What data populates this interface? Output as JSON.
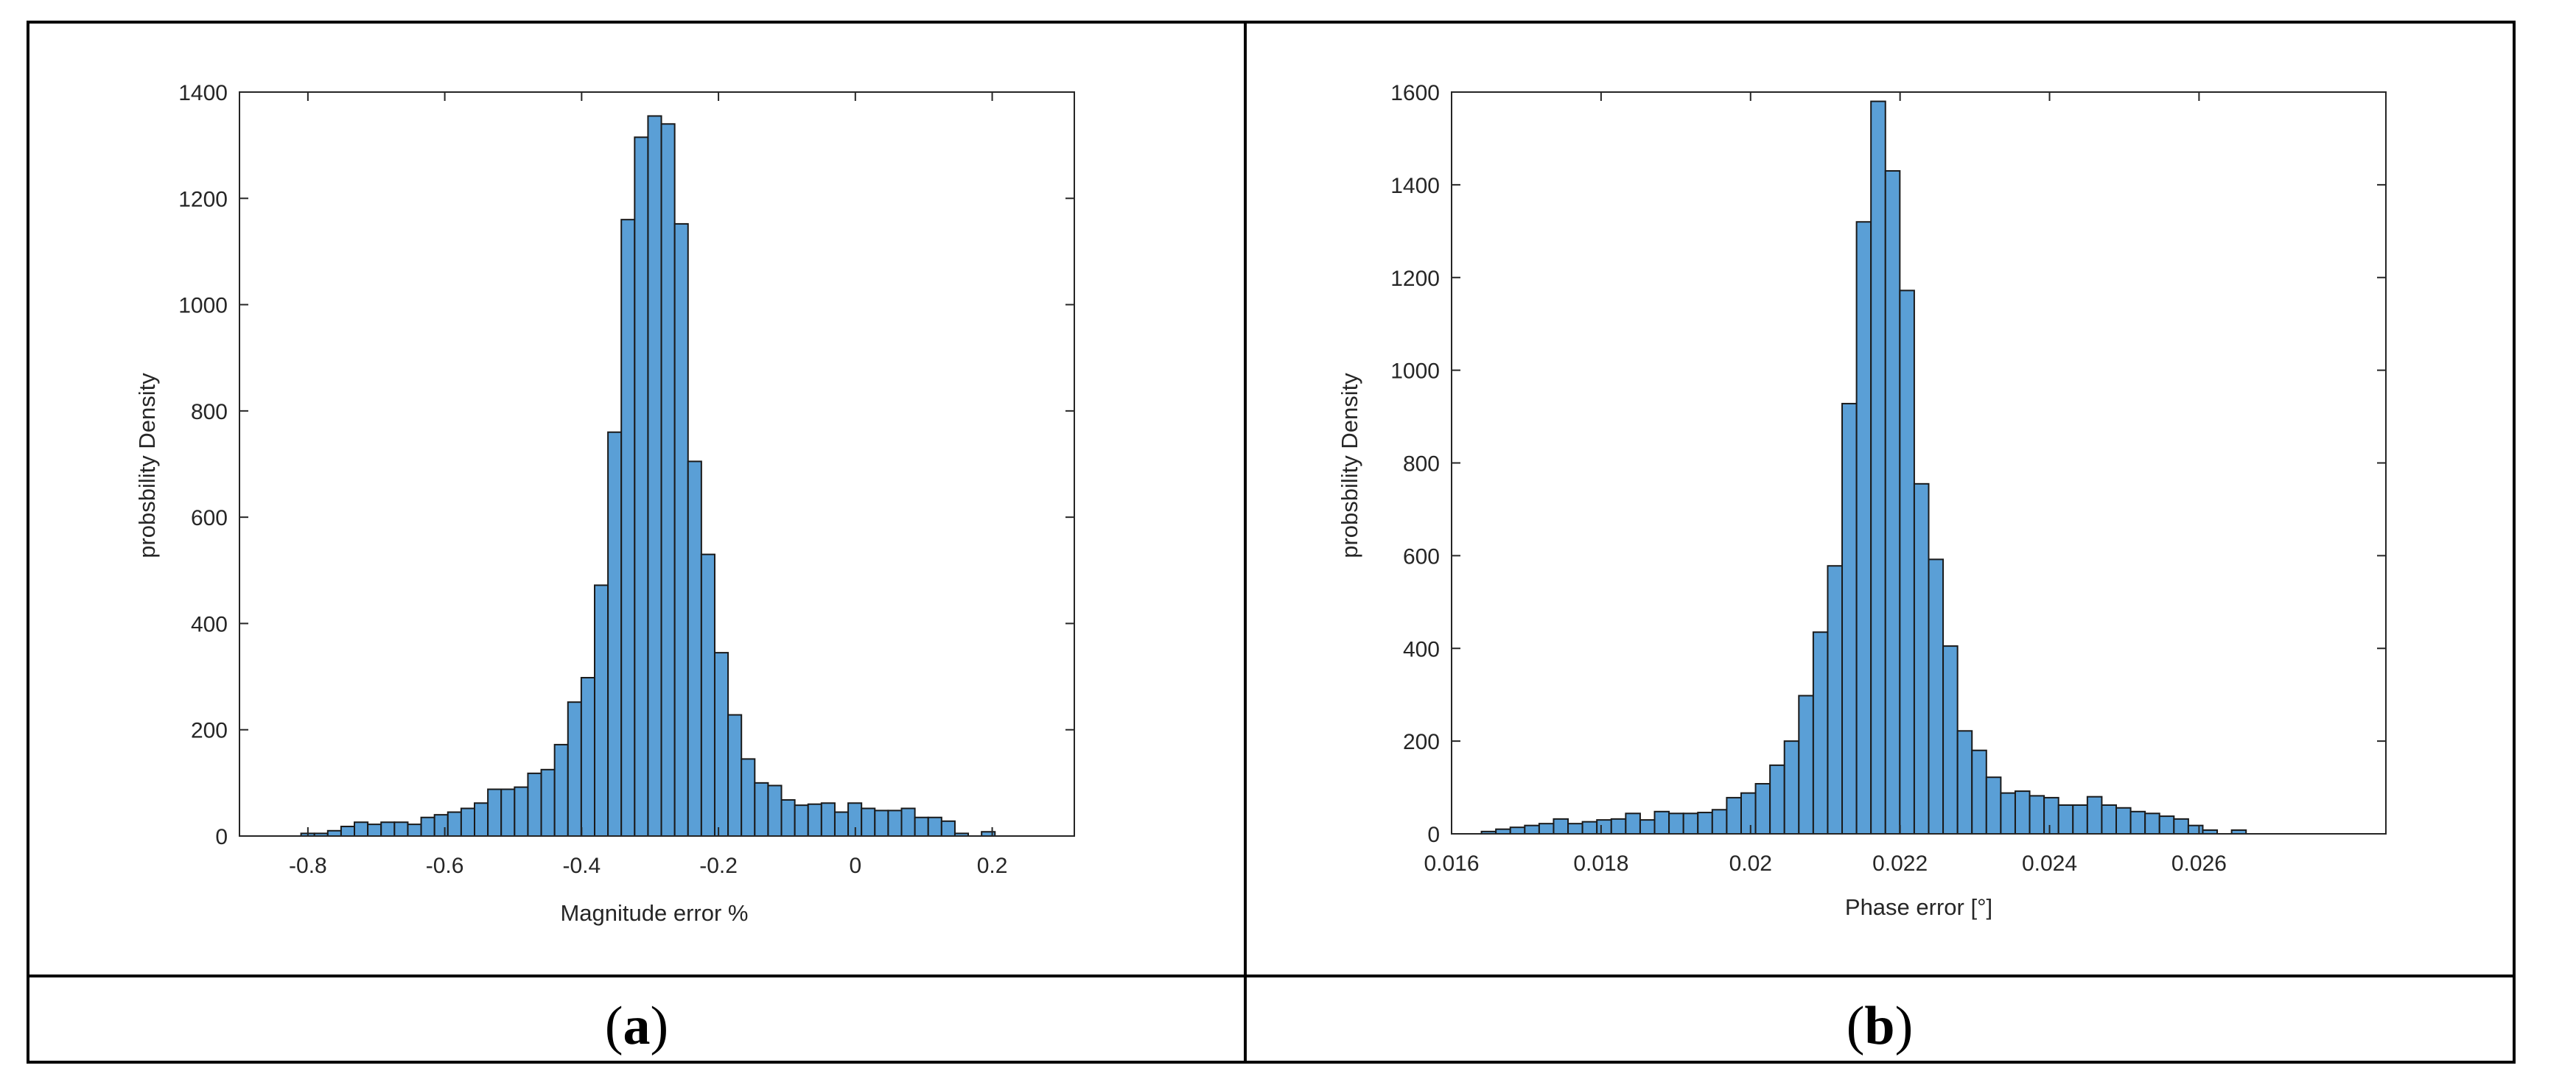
{
  "captions": {
    "a_open": "(",
    "a_letter": "a",
    "a_close": ")",
    "b_open": "(",
    "b_letter": "b",
    "b_close": ")"
  },
  "colors": {
    "bar_fill": "#5a9fd6",
    "bar_edge": "#1a1a1a",
    "axes": "#262626",
    "border": "#000000"
  },
  "chart_data": [
    {
      "type": "bar",
      "panel": "a",
      "xlabel": "Magnitude error %",
      "ylabel": "probsbility Density",
      "xlim": [
        -0.9,
        0.32
      ],
      "ylim": [
        0,
        1400
      ],
      "xticks": [
        -0.8,
        -0.6,
        -0.4,
        -0.2,
        0,
        0.2
      ],
      "xtick_labels": [
        "-0.8",
        "-0.6",
        "-0.4",
        "-0.2",
        "0",
        "0.2"
      ],
      "yticks": [
        0,
        200,
        400,
        600,
        800,
        1000,
        1200,
        1400
      ],
      "ytick_labels": [
        "0",
        "200",
        "400",
        "600",
        "800",
        "1000",
        "1200",
        "1400"
      ],
      "bin_start": -0.81,
      "bin_width": 0.0195,
      "values": [
        5,
        5,
        10,
        18,
        26,
        22,
        26,
        26,
        22,
        35,
        40,
        45,
        52,
        62,
        88,
        88,
        92,
        118,
        125,
        172,
        252,
        298,
        472,
        760,
        1160,
        1315,
        1355,
        1340,
        1152,
        705,
        530,
        345,
        228,
        145,
        100,
        95,
        68,
        58,
        60,
        62,
        45,
        62,
        52,
        48,
        48,
        52,
        35,
        35,
        28,
        5,
        0,
        8
      ]
    },
    {
      "type": "bar",
      "panel": "b",
      "xlabel": "Phase error [°]",
      "ylabel": "probsbility Density",
      "xlim": [
        0.016,
        0.0285
      ],
      "ylim": [
        0,
        1600
      ],
      "xticks": [
        0.016,
        0.018,
        0.02,
        0.022,
        0.024,
        0.026
      ],
      "xtick_labels": [
        "0.016",
        "0.018",
        "0.02",
        "0.022",
        "0.024",
        "0.026"
      ],
      "yticks": [
        0,
        200,
        400,
        600,
        800,
        1000,
        1200,
        1400,
        1600
      ],
      "ytick_labels": [
        "0",
        "200",
        "400",
        "600",
        "800",
        "1000",
        "1200",
        "1400",
        "1600"
      ],
      "bin_start": 0.0164,
      "bin_width": 0.000193,
      "values": [
        5,
        10,
        14,
        18,
        22,
        32,
        22,
        26,
        30,
        32,
        44,
        30,
        48,
        44,
        44,
        46,
        52,
        78,
        88,
        108,
        148,
        200,
        298,
        435,
        578,
        928,
        1320,
        1580,
        1430,
        1172,
        755,
        592,
        405,
        222,
        180,
        122,
        88,
        92,
        82,
        78,
        62,
        62,
        80,
        62,
        56,
        48,
        44,
        38,
        32,
        18,
        8,
        0,
        8
      ]
    }
  ]
}
